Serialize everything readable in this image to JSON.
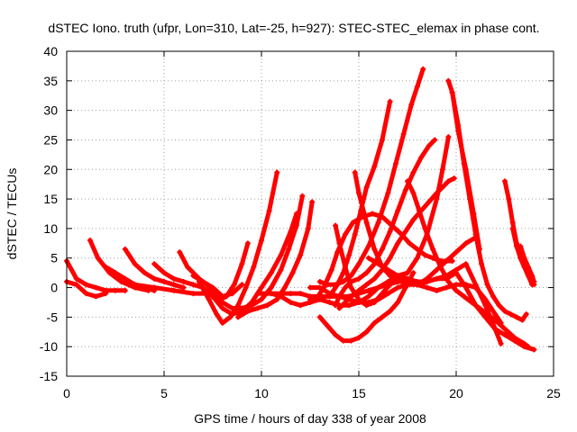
{
  "chart_data": {
    "type": "scatter",
    "title": "dSTEC Iono. truth (ufpr, Lon=310, Lat=-25, h=927): STEC-STEC_elemax in phase cont.",
    "xlabel": "GPS time / hours of day 338 of year 2008",
    "ylabel": "dSTEC  / TECUs",
    "xlim": [
      0,
      25
    ],
    "ylim": [
      -15,
      40
    ],
    "xticks": [
      0,
      5,
      10,
      15,
      20,
      25
    ],
    "yticks": [
      -15,
      -10,
      -5,
      0,
      5,
      10,
      15,
      20,
      25,
      30,
      35,
      40
    ],
    "grid": true,
    "color": "#ff0000",
    "marker": "plus",
    "series": [
      {
        "x": [
          0.0,
          0.5,
          1.0,
          1.5,
          2.0,
          2.5,
          3.0
        ],
        "y": [
          4.5,
          1.5,
          0.5,
          0.0,
          -0.5,
          -0.5,
          -0.5
        ]
      },
      {
        "x": [
          0.0,
          0.5,
          1.0,
          1.5,
          2.0
        ],
        "y": [
          1.0,
          0.5,
          -1.0,
          -1.5,
          -1.0
        ]
      },
      {
        "x": [
          1.2,
          1.6,
          2.2,
          2.8,
          3.5,
          4.2
        ],
        "y": [
          8.0,
          5.0,
          2.5,
          1.0,
          0.0,
          -0.5
        ]
      },
      {
        "x": [
          2.0,
          2.5,
          3.0,
          3.5,
          4.0,
          4.5
        ],
        "y": [
          3.5,
          2.5,
          1.5,
          0.5,
          0.0,
          -0.5
        ]
      },
      {
        "x": [
          3.0,
          3.5,
          4.0,
          4.5,
          5.0,
          5.5,
          6.0
        ],
        "y": [
          6.5,
          4.0,
          2.5,
          1.5,
          1.0,
          0.5,
          0.0
        ]
      },
      {
        "x": [
          3.5,
          4.5,
          5.5,
          6.5,
          7.5
        ],
        "y": [
          0.5,
          0.0,
          -0.5,
          -1.0,
          -1.0
        ]
      },
      {
        "x": [
          4.5,
          5.0,
          5.5,
          6.0,
          6.5,
          7.0
        ],
        "y": [
          4.0,
          2.5,
          1.5,
          1.0,
          0.5,
          0.0
        ]
      },
      {
        "x": [
          5.8,
          6.2,
          6.8,
          7.2,
          7.6,
          7.9,
          8.2,
          8.6,
          9.0,
          9.3
        ],
        "y": [
          6.0,
          3.5,
          1.5,
          0.5,
          -1.0,
          -2.0,
          -1.5,
          0.5,
          4.0,
          7.5
        ]
      },
      {
        "x": [
          6.5,
          7.0,
          7.5,
          8.0,
          8.5,
          9.0
        ],
        "y": [
          2.0,
          1.0,
          0.0,
          -1.5,
          -1.0,
          0.5
        ]
      },
      {
        "x": [
          6.8,
          7.3,
          7.7,
          8.0,
          8.4,
          8.8,
          9.2,
          9.6,
          10.0,
          10.4,
          10.8
        ],
        "y": [
          1.0,
          -2.0,
          -4.5,
          -6.0,
          -5.0,
          -3.0,
          0.0,
          3.5,
          8.0,
          13.0,
          19.5
        ]
      },
      {
        "x": [
          7.0,
          7.5,
          8.0,
          8.5,
          9.0,
          9.5,
          10.0,
          10.5,
          11.0,
          11.5,
          11.8
        ],
        "y": [
          0.0,
          -1.5,
          -3.5,
          -4.5,
          -4.0,
          -2.5,
          0.0,
          2.5,
          5.5,
          9.5,
          12.5
        ]
      },
      {
        "x": [
          7.5,
          8.0,
          8.5,
          9.0,
          9.5,
          10.0,
          10.5,
          11.0,
          11.4,
          11.8,
          12.1
        ],
        "y": [
          -1.0,
          -2.5,
          -3.5,
          -3.5,
          -3.0,
          -2.0,
          0.0,
          3.0,
          6.5,
          10.5,
          15.5
        ]
      },
      {
        "x": [
          8.8,
          9.3,
          9.8,
          10.3,
          10.8,
          11.2,
          11.6,
          12.0,
          12.4,
          12.6
        ],
        "y": [
          -5.0,
          -4.0,
          -3.5,
          -3.0,
          -2.0,
          0.0,
          2.5,
          5.5,
          10.0,
          14.5
        ]
      },
      {
        "x": [
          9.8,
          10.5,
          11.0,
          11.5,
          12.0,
          12.5,
          13.0
        ],
        "y": [
          -1.0,
          -1.0,
          -1.5,
          -2.5,
          -3.0,
          -2.5,
          -2.0
        ]
      },
      {
        "x": [
          10.5,
          11.0,
          11.5,
          12.0,
          12.5,
          13.0,
          13.5,
          14.0,
          14.5,
          15.0,
          15.5,
          16.0,
          16.5,
          17.0,
          17.5,
          18.0,
          18.5,
          19.0,
          19.5,
          20.0,
          20.5,
          21.0,
          21.5,
          22.0,
          22.3
        ],
        "y": [
          -1.0,
          -1.0,
          -1.0,
          -1.0,
          -1.5,
          -1.5,
          -1.5,
          -1.5,
          -2.0,
          -2.5,
          -2.5,
          -2.0,
          -1.0,
          0.0,
          0.5,
          0.5,
          1.0,
          1.5,
          2.0,
          3.0,
          4.0,
          0.5,
          -3.0,
          -7.0,
          -9.5
        ]
      },
      {
        "x": [
          12.5,
          13.0,
          13.5,
          14.0,
          14.5,
          15.0,
          15.5,
          16.0,
          16.5,
          17.0,
          17.5,
          18.0,
          18.5,
          19.0,
          19.5,
          20.0,
          20.5,
          21.0,
          21.5,
          22.0,
          22.5,
          23.0,
          23.5,
          24.0
        ],
        "y": [
          -2.0,
          -2.0,
          -2.5,
          -3.0,
          -3.0,
          -2.5,
          -1.5,
          0.0,
          1.0,
          2.0,
          1.5,
          1.0,
          1.0,
          1.5,
          1.5,
          2.5,
          0.0,
          -3.0,
          -5.0,
          -7.0,
          -8.0,
          -9.0,
          -10.0,
          -10.5
        ]
      },
      {
        "x": [
          12.5,
          13.0,
          13.5,
          14.0,
          14.5,
          15.0,
          15.5,
          16.0,
          16.5,
          17.0,
          17.5,
          18.0,
          18.5,
          19.0,
          19.5,
          20.0,
          20.5,
          21.0
        ],
        "y": [
          0.0,
          0.0,
          -1.0,
          -1.5,
          -1.5,
          -1.0,
          -0.5,
          0.0,
          0.5,
          1.0,
          1.0,
          0.5,
          1.5,
          3.0,
          4.5,
          6.0,
          7.5,
          8.5
        ]
      },
      {
        "x": [
          12.8,
          13.2,
          13.6,
          13.9,
          14.3,
          14.7,
          15.2,
          15.7,
          16.2,
          16.7,
          17.2,
          17.6,
          18.0,
          18.4,
          18.8,
          19.2,
          19.5,
          19.8
        ],
        "y": [
          -2.0,
          0.0,
          3.0,
          6.0,
          9.0,
          11.0,
          12.0,
          12.5,
          12.0,
          10.5,
          9.0,
          7.5,
          6.5,
          5.5,
          5.0,
          4.5,
          4.5,
          4.5
        ]
      },
      {
        "x": [
          13.0,
          13.4,
          13.8,
          14.2,
          14.6,
          15.0,
          15.5,
          16.0,
          16.5,
          16.9,
          17.3,
          17.7,
          18.0,
          18.3
        ],
        "y": [
          1.0,
          0.5,
          0.5,
          1.0,
          2.0,
          4.0,
          7.0,
          11.0,
          16.0,
          21.0,
          26.0,
          31.0,
          34.0,
          37.0
        ]
      },
      {
        "x": [
          13.5,
          13.9,
          14.2,
          14.5,
          14.8,
          15.1,
          15.4,
          15.8,
          16.2,
          16.6
        ],
        "y": [
          -1.5,
          0.5,
          2.5,
          5.5,
          9.0,
          13.0,
          17.0,
          20.5,
          25.0,
          31.5
        ]
      },
      {
        "x": [
          13.8,
          14.0,
          14.3,
          14.6,
          15.0,
          15.4,
          15.8,
          16.2,
          16.6,
          17.0,
          17.4,
          17.8,
          18.2,
          18.6,
          18.9
        ],
        "y": [
          -3.0,
          -1.5,
          0.0,
          1.0,
          1.5,
          2.5,
          4.0,
          6.5,
          9.5,
          13.0,
          16.5,
          19.5,
          22.0,
          24.0,
          25.0
        ]
      },
      {
        "x": [
          14.0,
          14.3,
          14.6,
          15.0,
          15.4,
          15.8,
          16.2,
          16.6,
          17.0,
          17.4,
          17.8,
          18.2,
          18.6,
          19.0,
          19.3,
          19.6,
          19.9
        ],
        "y": [
          -3.5,
          -2.5,
          -1.5,
          -0.5,
          0.5,
          1.5,
          3.0,
          5.0,
          7.5,
          9.5,
          11.5,
          13.0,
          14.5,
          16.0,
          17.0,
          18.0,
          18.5
        ]
      },
      {
        "x": [
          13.8,
          14.0,
          14.3,
          14.6,
          15.0,
          15.4,
          15.8,
          16.2,
          16.6,
          17.0
        ],
        "y": [
          10.5,
          7.5,
          3.5,
          0.0,
          -2.0,
          -3.0,
          -2.5,
          -1.0,
          0.5,
          1.5
        ]
      },
      {
        "x": [
          13.0,
          13.4,
          13.8,
          14.2,
          14.6,
          15.0,
          15.4,
          15.8,
          16.2,
          16.6,
          17.0,
          17.4,
          17.8
        ],
        "y": [
          -5.0,
          -6.5,
          -8.0,
          -9.0,
          -9.0,
          -8.5,
          -7.5,
          -6.0,
          -5.0,
          -4.0,
          -2.5,
          0.0,
          2.5
        ]
      },
      {
        "x": [
          14.8,
          15.0,
          15.4,
          15.8,
          16.2,
          16.6,
          17.0,
          17.5,
          18.0,
          18.5,
          19.0,
          19.5,
          20.0,
          20.5,
          21.0,
          21.5,
          22.0,
          22.3
        ],
        "y": [
          19.5,
          16.0,
          11.0,
          6.5,
          3.5,
          2.0,
          1.5,
          1.0,
          0.5,
          0.0,
          -0.5,
          0.0,
          0.5,
          0.5,
          0.0,
          -2.0,
          -4.5,
          -6.0
        ]
      },
      {
        "x": [
          15.5,
          16.0,
          16.5,
          17.0,
          17.5,
          18.0,
          18.5,
          19.0,
          19.3,
          19.6
        ],
        "y": [
          5.0,
          4.0,
          3.0,
          2.0,
          2.5,
          5.0,
          9.0,
          15.0,
          20.0,
          25.5
        ]
      },
      {
        "x": [
          17.5,
          17.8,
          18.1,
          18.4,
          18.8,
          19.2,
          19.6,
          20.0,
          20.4,
          20.8,
          21.2,
          21.6,
          22.0,
          22.5,
          23.0,
          23.5,
          23.7
        ],
        "y": [
          18.0,
          16.0,
          13.0,
          10.0,
          6.5,
          3.5,
          1.0,
          -0.5,
          -1.5,
          -2.5,
          -3.5,
          -4.5,
          -5.5,
          -7.0,
          -8.5,
          -9.5,
          -10.0
        ]
      },
      {
        "x": [
          19.6,
          19.8,
          20.1,
          20.4,
          20.7,
          21.0,
          21.3,
          21.6,
          21.9,
          22.2,
          22.5,
          22.8,
          23.1,
          23.4,
          23.6
        ],
        "y": [
          35.0,
          33.0,
          27.5,
          21.0,
          15.0,
          9.0,
          4.0,
          0.5,
          -1.5,
          -3.0,
          -4.0,
          -4.5,
          -5.0,
          -5.5,
          -4.5
        ]
      },
      {
        "x": [
          19.8,
          20.1,
          20.5,
          20.9,
          21.2
        ],
        "y": [
          33.0,
          26.5,
          20.0,
          12.5,
          6.5
        ]
      },
      {
        "x": [
          22.5,
          22.7,
          22.9,
          23.1,
          23.3,
          23.5,
          23.7,
          23.9,
          24.0
        ],
        "y": [
          18.0,
          15.0,
          11.0,
          7.5,
          5.0,
          3.5,
          2.5,
          1.0,
          0.5
        ]
      },
      {
        "x": [
          22.9,
          23.1,
          23.3,
          23.5,
          23.7,
          23.9
        ],
        "y": [
          10.0,
          7.0,
          5.0,
          3.5,
          2.0,
          0.5
        ]
      },
      {
        "x": [
          23.3,
          23.5,
          23.7,
          23.9,
          24.0
        ],
        "y": [
          7.0,
          5.0,
          3.5,
          2.0,
          1.0
        ]
      }
    ]
  }
}
